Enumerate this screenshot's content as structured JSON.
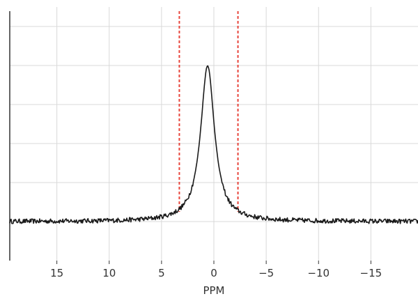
{
  "chart_data": {
    "type": "line",
    "title": "",
    "xlabel": "PPM",
    "ylabel": "",
    "x_reversed": true,
    "xlim": [
      19.5,
      -19.5
    ],
    "ylim": [
      -0.2,
      1.1
    ],
    "x_ticks": [
      15,
      10,
      5,
      0,
      -5,
      -10,
      -15
    ],
    "x_tick_labels": [
      "15",
      "10",
      "5",
      "0",
      "−5",
      "−10",
      "−15"
    ],
    "y_gridlines": [
      0.0,
      0.2,
      0.4,
      0.6,
      0.8,
      1.0
    ],
    "grid": true,
    "legend": "none",
    "series": [
      {
        "color": "#1a1a1a",
        "peak": {
          "center_ppm": 0.6,
          "height": 0.8,
          "width_ppm": 1.6
        },
        "baseline": 0.0,
        "noise_amplitude": 0.012
      }
    ],
    "annotations": [
      {
        "type": "vline",
        "x": 3.3,
        "style": "dashed",
        "color": "#e8453c"
      },
      {
        "type": "vline",
        "x": -2.3,
        "style": "dashed",
        "color": "#e8453c"
      }
    ]
  }
}
